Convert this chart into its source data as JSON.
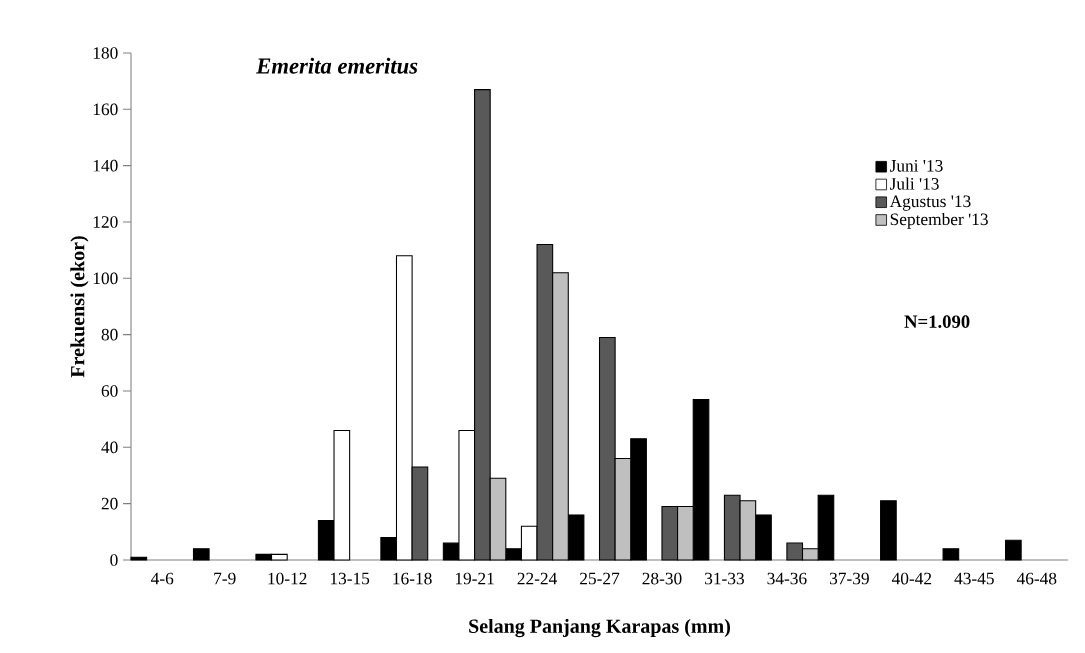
{
  "chart_data": {
    "type": "bar",
    "title": "Emerita emeritus",
    "xlabel": "Selang Panjang Karapas (mm)",
    "ylabel": "Frekuensi (ekor)",
    "categories": [
      "4-6",
      "7-9",
      "10-12",
      "13-15",
      "16-18",
      "19-21",
      "22-24",
      "25-27",
      "28-30",
      "31-33",
      "34-36",
      "37-39",
      "40-42",
      "43-45",
      "46-48"
    ],
    "series": [
      {
        "name": "Juni '13",
        "color": "#000000",
        "values": [
          1,
          4,
          2,
          14,
          8,
          6,
          4,
          16,
          43,
          57,
          16,
          23,
          21,
          4,
          7
        ]
      },
      {
        "name": "Juli '13",
        "color": "#ffffff",
        "values": [
          null,
          null,
          2,
          46,
          108,
          46,
          12,
          null,
          null,
          null,
          null,
          null,
          null,
          null,
          null
        ]
      },
      {
        "name": "Agustus '13",
        "color": "#595959",
        "values": [
          null,
          null,
          null,
          null,
          33,
          167,
          112,
          79,
          19,
          23,
          6,
          null,
          null,
          null,
          null
        ]
      },
      {
        "name": "September '13",
        "color": "#bfbfbf",
        "values": [
          null,
          null,
          null,
          null,
          null,
          29,
          102,
          36,
          19,
          21,
          4,
          null,
          null,
          null,
          null
        ]
      }
    ],
    "annotations": [
      "N=1.090"
    ],
    "ylim": [
      0,
      180
    ],
    "yticks": [
      0,
      20,
      40,
      60,
      80,
      100,
      120,
      140,
      160,
      180
    ],
    "legend": "right"
  }
}
